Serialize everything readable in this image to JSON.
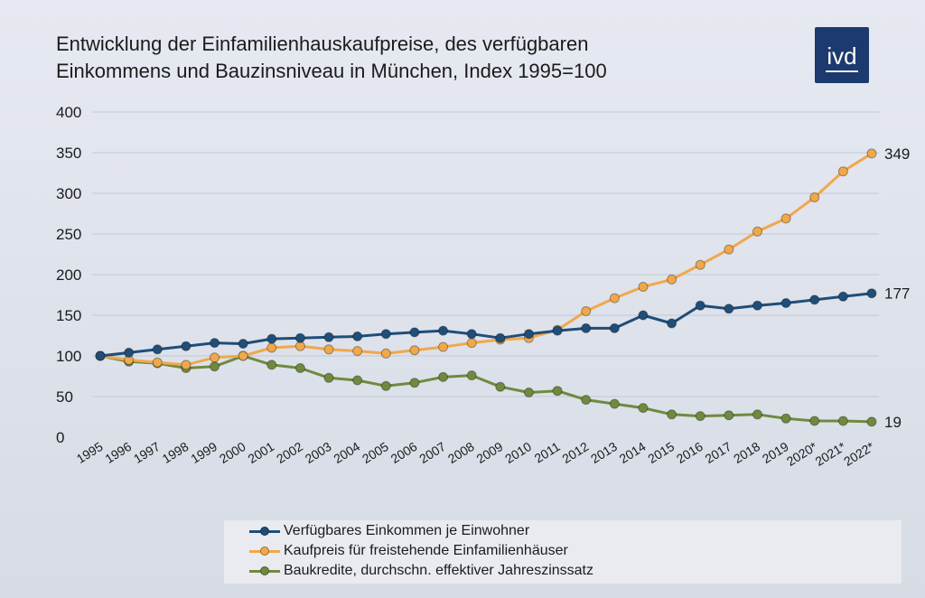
{
  "header": {
    "title_line1": "Entwicklung der Einfamilienhauskaufpreise, des verfügbaren",
    "title_line2": "Einkommens und Bauzinsniveau in München, Index 1995=100",
    "logo_text": "ivd"
  },
  "chart_data": {
    "type": "line",
    "title": "Entwicklung der Einfamilienhauskaufpreise, des verfügbaren Einkommens und Bauzinsniveau in München, Index 1995=100",
    "x": [
      "1995",
      "1996",
      "1997",
      "1998",
      "1999",
      "2000",
      "2001",
      "2002",
      "2003",
      "2004",
      "2005",
      "2006",
      "2007",
      "2008",
      "2009",
      "2010",
      "2011",
      "2012",
      "2013",
      "2014",
      "2015",
      "2016",
      "2017",
      "2018",
      "2019",
      "2020*",
      "2021*",
      "2022*"
    ],
    "ylim": [
      0,
      400
    ],
    "yticks": [
      0,
      50,
      100,
      150,
      200,
      250,
      300,
      350,
      400
    ],
    "grid": "horizontal",
    "legend_position": "bottom",
    "series": [
      {
        "name": "Verfügbares Einkommen je Einwohner",
        "color": "#1f4e79",
        "end_label": "177",
        "values": [
          100,
          104,
          108,
          112,
          116,
          115,
          121,
          122,
          123,
          124,
          127,
          129,
          131,
          127,
          122,
          127,
          131,
          134,
          134,
          150,
          140,
          162,
          158,
          162,
          165,
          169,
          173,
          177
        ]
      },
      {
        "name": "Kaufpreis für freistehende Einfamilienhäuser",
        "color": "#f0a84a",
        "end_label": "349",
        "values": [
          100,
          95,
          92,
          89,
          98,
          100,
          110,
          112,
          108,
          106,
          103,
          107,
          111,
          116,
          120,
          122,
          132,
          155,
          171,
          185,
          194,
          212,
          231,
          253,
          269,
          295,
          327,
          349
        ]
      },
      {
        "name": "Baukredite, durchschn. effektiver Jahreszinssatz",
        "color": "#6f8a3f",
        "end_label": "19",
        "values": [
          100,
          93,
          91,
          85,
          87,
          100,
          89,
          85,
          73,
          70,
          63,
          67,
          74,
          76,
          62,
          55,
          57,
          46,
          41,
          36,
          28,
          26,
          27,
          28,
          23,
          20,
          20,
          19
        ]
      }
    ]
  }
}
